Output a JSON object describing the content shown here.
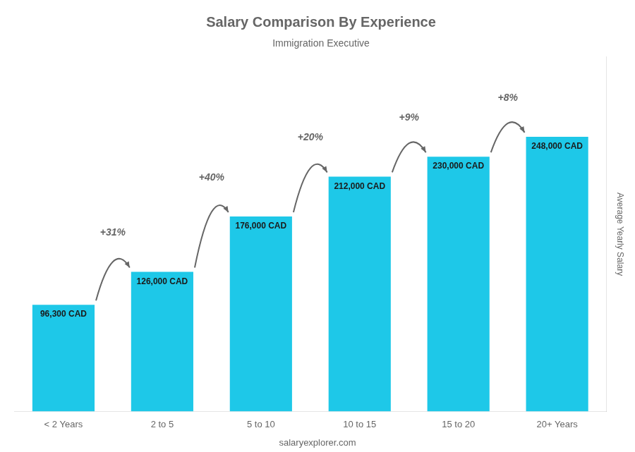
{
  "chart_data": {
    "type": "bar",
    "title": "Salary Comparison By Experience",
    "subtitle": "Immigration Executive",
    "categories": [
      "< 2 Years",
      "2 to 5",
      "5 to 10",
      "10 to 15",
      "15 to 20",
      "20+ Years"
    ],
    "values": [
      96300,
      126000,
      176000,
      212000,
      230000,
      248000
    ],
    "value_labels": [
      "96,300 CAD",
      "126,000 CAD",
      "176,000 CAD",
      "212,000 CAD",
      "230,000 CAD",
      "248,000 CAD"
    ],
    "data_labels": true,
    "color": "#1EC8E8",
    "ylabel": "Average Yearly Salary",
    "ylim": [
      0,
      320000
    ],
    "grid": false,
    "tick_labels": "x",
    "annotations": [
      {
        "text": "+31%",
        "from": "< 2 Years",
        "to": "2 to 5"
      },
      {
        "text": "+40%",
        "from": "2 to 5",
        "to": "5 to 10"
      },
      {
        "text": "+20%",
        "from": "5 to 10",
        "to": "10 to 15"
      },
      {
        "text": "+9%",
        "from": "10 to 15",
        "to": "15 to 20"
      },
      {
        "text": "+8%",
        "from": "15 to 20",
        "to": "20+ Years"
      }
    ],
    "footer": "salaryexplorer.com"
  }
}
